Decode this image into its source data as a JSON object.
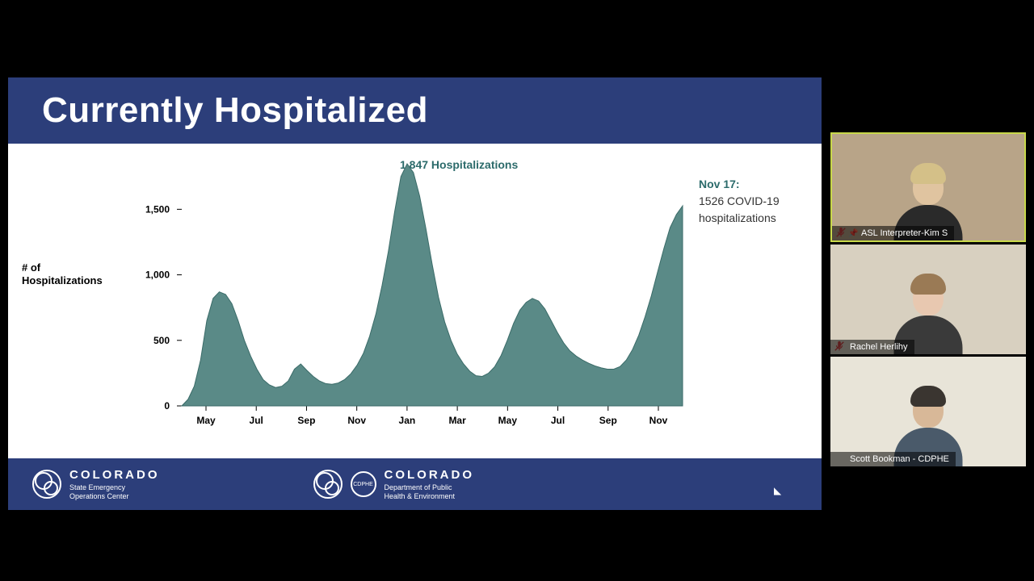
{
  "slide": {
    "title": "Currently Hospitalized",
    "header_bg": "#2c3e7a",
    "footer_bg": "#2c3e7a",
    "page_bg": "#ffffff"
  },
  "chart": {
    "type": "area",
    "peak_label": "1,847 Hospitalizations",
    "annotation_date": "Nov 17:",
    "annotation_line1": "1526 COVID-19",
    "annotation_line2": "hospitalizations",
    "y_axis_label_1": "# of",
    "y_axis_label_2": "Hospitalizations",
    "y_ticks": [
      "0",
      "500",
      "1,000",
      "1,500"
    ],
    "ylim": [
      0,
      1847
    ],
    "x_ticks": [
      "May",
      "Jul",
      "Sep",
      "Nov",
      "Jan",
      "Mar",
      "May",
      "Jul",
      "Sep",
      "Nov"
    ],
    "area_fill": "#5a8a87",
    "area_stroke": "#3a6b68",
    "tick_font_size": 12,
    "tick_color": "#000000",
    "label_font_size": 13,
    "annotation_color": "#2c6b6b",
    "values": [
      0,
      50,
      150,
      350,
      650,
      820,
      870,
      850,
      780,
      650,
      500,
      380,
      280,
      200,
      160,
      140,
      150,
      190,
      280,
      320,
      270,
      225,
      190,
      170,
      165,
      175,
      200,
      245,
      310,
      400,
      530,
      700,
      920,
      1180,
      1480,
      1750,
      1847,
      1780,
      1600,
      1350,
      1080,
      830,
      640,
      500,
      395,
      320,
      265,
      230,
      225,
      250,
      300,
      385,
      500,
      630,
      730,
      790,
      820,
      800,
      740,
      650,
      560,
      480,
      420,
      380,
      350,
      325,
      305,
      290,
      280,
      280,
      300,
      350,
      430,
      540,
      680,
      840,
      1020,
      1200,
      1360,
      1460,
      1526
    ]
  },
  "footer": {
    "state_text": "COLORADO",
    "org1_line1": "State Emergency",
    "org1_line2": "Operations Center",
    "org2_line1": "Department of Public",
    "org2_line2": "Health & Environment"
  },
  "participants": [
    {
      "name": "ASL Interpreter-Kim S",
      "pinned": true,
      "muted": true,
      "bg": "#b8a488",
      "skin": "#e0c4a0",
      "clothes": "#2a2a2a",
      "hair": "#d4c088"
    },
    {
      "name": "Rachel Herlihy",
      "pinned": false,
      "muted": true,
      "bg": "#d8d0c0",
      "skin": "#e8c8b0",
      "clothes": "#3a3a3a",
      "hair": "#9a7a55"
    },
    {
      "name": "Scott Bookman - CDPHE",
      "pinned": false,
      "muted": false,
      "bg": "#e8e4d8",
      "skin": "#d8b898",
      "clothes": "#4a5a6a",
      "hair": "#3a3530"
    }
  ]
}
